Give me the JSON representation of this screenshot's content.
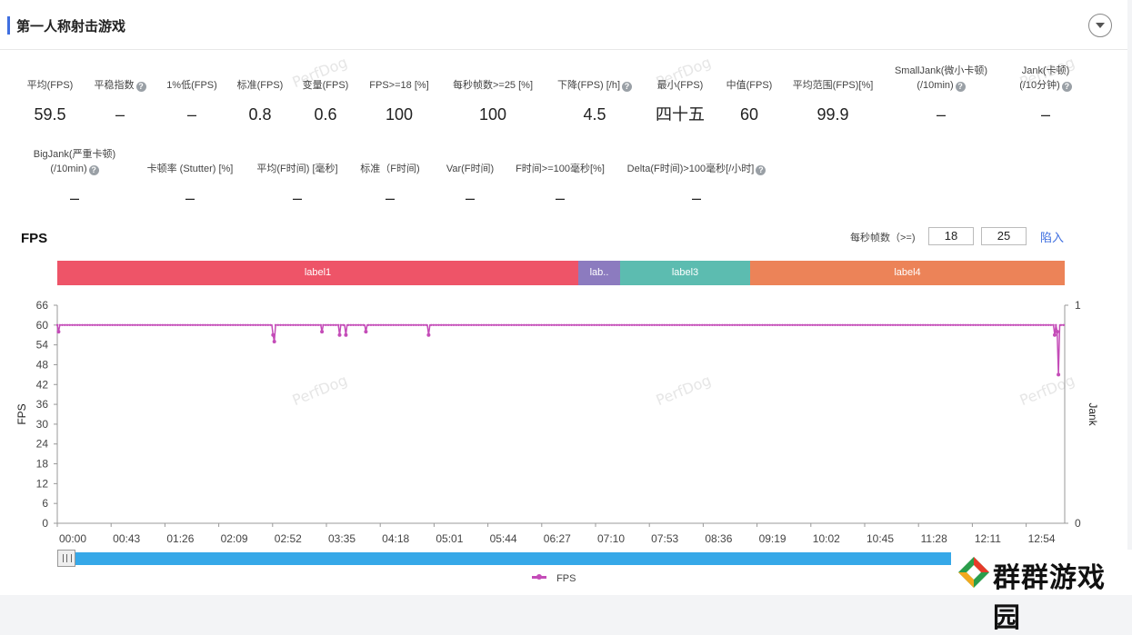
{
  "header": {
    "title": "第一人称射击游戏"
  },
  "metrics_row1": [
    {
      "label": "平均(FPS)",
      "value": "59.5"
    },
    {
      "label": "平稳指数",
      "value": "–",
      "help": true
    },
    {
      "label": "1%低(FPS)",
      "value": "–"
    },
    {
      "label": "标准(FPS)",
      "value": "0.8"
    },
    {
      "label": "变量(FPS)",
      "value": "0.6"
    },
    {
      "label": "FPS>=18 [%]",
      "value": "100"
    },
    {
      "label": "每秒帧数>=25 [%]",
      "value": "100"
    },
    {
      "label": "下降(FPS) [/h]",
      "value": "4.5",
      "help": true
    },
    {
      "label": "最小(FPS)",
      "value": "四十五"
    },
    {
      "label": "中值(FPS)",
      "value": "60"
    },
    {
      "label": "平均范围(FPS)[%]",
      "value": "99.9"
    },
    {
      "label": "SmallJank(微小卡顿)",
      "label2": "(/10min)",
      "value": "–",
      "help": true
    },
    {
      "label": "Jank(卡顿)",
      "label2": "(/10分钟)",
      "value": "–",
      "help": true
    }
  ],
  "metrics_row2": [
    {
      "label": "BigJank(严重卡顿)",
      "label2": "(/10min)",
      "value": "–",
      "help": true
    },
    {
      "label": "卡顿率 (Stutter) [%]",
      "value": "–"
    },
    {
      "label": "平均(F时间) [毫秒]",
      "value": "–"
    },
    {
      "label": "标准（F时间)",
      "value": "–"
    },
    {
      "label": "Var(F时间)",
      "value": "–"
    },
    {
      "label": "F时间>=100毫秒[%]",
      "value": "–"
    },
    {
      "label": "Delta(F时间)>100毫秒[/小时]",
      "value": "–",
      "help": true
    }
  ],
  "fps_section": {
    "title": "FPS",
    "threshold_label": "每秒帧数（>=)",
    "threshold1": "18",
    "threshold2": "25",
    "import_label": "陷入"
  },
  "labels": [
    {
      "name": "label1",
      "color": "#ee5468"
    },
    {
      "name": "lab..",
      "color": "#8c7bbf"
    },
    {
      "name": "label3",
      "color": "#5cbcb0"
    },
    {
      "name": "label4",
      "color": "#ec8358"
    }
  ],
  "watermark": "PerfDog",
  "chart_data": {
    "type": "line",
    "ylabel": "FPS",
    "y2label": "Jank",
    "ylim": [
      0,
      66
    ],
    "yticks": [
      0,
      6,
      12,
      18,
      24,
      30,
      36,
      42,
      48,
      54,
      60,
      66
    ],
    "y2ticks": [
      "0",
      "1"
    ],
    "xticks": [
      "00:00",
      "00:43",
      "01:26",
      "02:09",
      "02:52",
      "03:35",
      "04:18",
      "05:01",
      "05:44",
      "06:27",
      "07:10",
      "07:53",
      "08:36",
      "09:19",
      "10:02",
      "10:45",
      "11:28",
      "12:11",
      "12:54"
    ],
    "x_range_seconds": [
      0,
      803
    ],
    "series": [
      {
        "name": "FPS",
        "color": "#c44cb8",
        "baseline": 60,
        "dips": [
          {
            "t": 1,
            "v": 58
          },
          {
            "t": 172,
            "v": 57
          },
          {
            "t": 173,
            "v": 55
          },
          {
            "t": 211,
            "v": 58
          },
          {
            "t": 225,
            "v": 57
          },
          {
            "t": 230,
            "v": 57
          },
          {
            "t": 246,
            "v": 58
          },
          {
            "t": 296,
            "v": 57
          },
          {
            "t": 795,
            "v": 57
          },
          {
            "t": 797,
            "v": 58
          },
          {
            "t": 798,
            "v": 45
          }
        ]
      }
    ],
    "legend": [
      "FPS"
    ]
  },
  "brand": {
    "text": "群群游戏园"
  }
}
